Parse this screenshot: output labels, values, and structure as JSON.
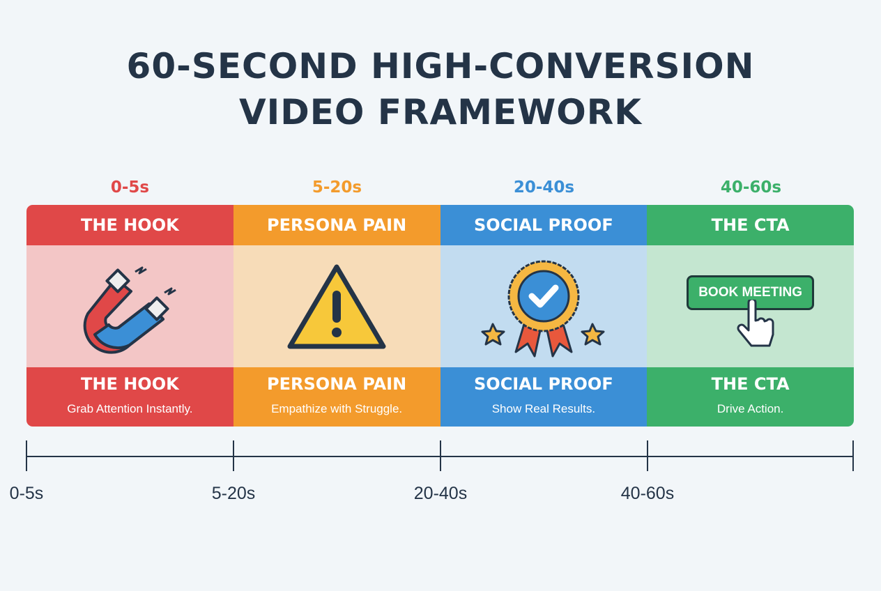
{
  "title": {
    "line1": "60-SECOND HIGH-CONVERSION",
    "line2": "VIDEO FRAMEWORK"
  },
  "stages": [
    {
      "time": "0-5s",
      "title": "THE HOOK",
      "desc": "Grab Attention Instantly.",
      "icon": "magnet-icon",
      "color": "#e04848",
      "light": "#f3c6c6"
    },
    {
      "time": "5-20s",
      "title": "PERSONA PAIN",
      "desc": "Empathize with Struggle.",
      "icon": "warning-icon",
      "color": "#f39b2c",
      "light": "#f7dcb8"
    },
    {
      "time": "20-40s",
      "title": "SOCIAL PROOF",
      "desc": "Show Real Results.",
      "icon": "award-badge-icon",
      "color": "#3b8fd6",
      "light": "#c2dcf0"
    },
    {
      "time": "40-60s",
      "title": "THE CTA",
      "desc": "Drive Action.",
      "icon": "click-button-icon",
      "color": "#3cb06a",
      "light": "#c4e6d0"
    }
  ],
  "cta_button": "BOOK MEETING",
  "timeline": {
    "labels": [
      "0-5s",
      "5-20s",
      "20-40s",
      "40-60s"
    ]
  }
}
